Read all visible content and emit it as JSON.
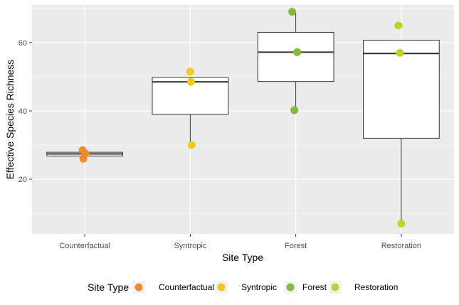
{
  "chart_data": {
    "type": "box",
    "title": "",
    "xlabel": "Site Type",
    "ylabel": "Effective Species Richness",
    "ylim": [
      4,
      71
    ],
    "yticks": [
      20,
      40,
      60
    ],
    "grid": true,
    "categories": [
      "Counterfactual",
      "Syntropic",
      "Forest",
      "Restoration"
    ],
    "colors": {
      "Counterfactual": "#f28a2e",
      "Syntropic": "#f2c81e",
      "Forest": "#86b83a",
      "Restoration": "#c8cf2a"
    },
    "boxes": [
      {
        "category": "Counterfactual",
        "min": 26.8,
        "q1": 26.8,
        "median": 27.4,
        "q3": 27.9,
        "max": 27.9
      },
      {
        "category": "Syntropic",
        "min": 30.0,
        "q1": 39.0,
        "median": 48.5,
        "q3": 49.8,
        "max": 49.8
      },
      {
        "category": "Forest",
        "min": 40.0,
        "q1": 48.6,
        "median": 57.2,
        "q3": 63.0,
        "max": 69.0
      },
      {
        "category": "Restoration",
        "min": 7.0,
        "q1": 32.0,
        "median": 56.8,
        "q3": 60.7,
        "max": 60.7
      }
    ],
    "points": [
      {
        "category": "Counterfactual",
        "values": [
          28.5,
          27.5,
          26.0
        ]
      },
      {
        "category": "Syntropic",
        "values": [
          51.5,
          48.5,
          30.0
        ]
      },
      {
        "category": "Forest",
        "values": [
          69.0,
          57.2,
          40.2
        ]
      },
      {
        "category": "Restoration",
        "values": [
          65.0,
          57.0,
          7.0
        ]
      }
    ],
    "legend": {
      "title": "Site Type",
      "position": "bottom",
      "entries": [
        "Counterfactual",
        "Syntropic",
        "Forest",
        "Restoration"
      ]
    }
  }
}
